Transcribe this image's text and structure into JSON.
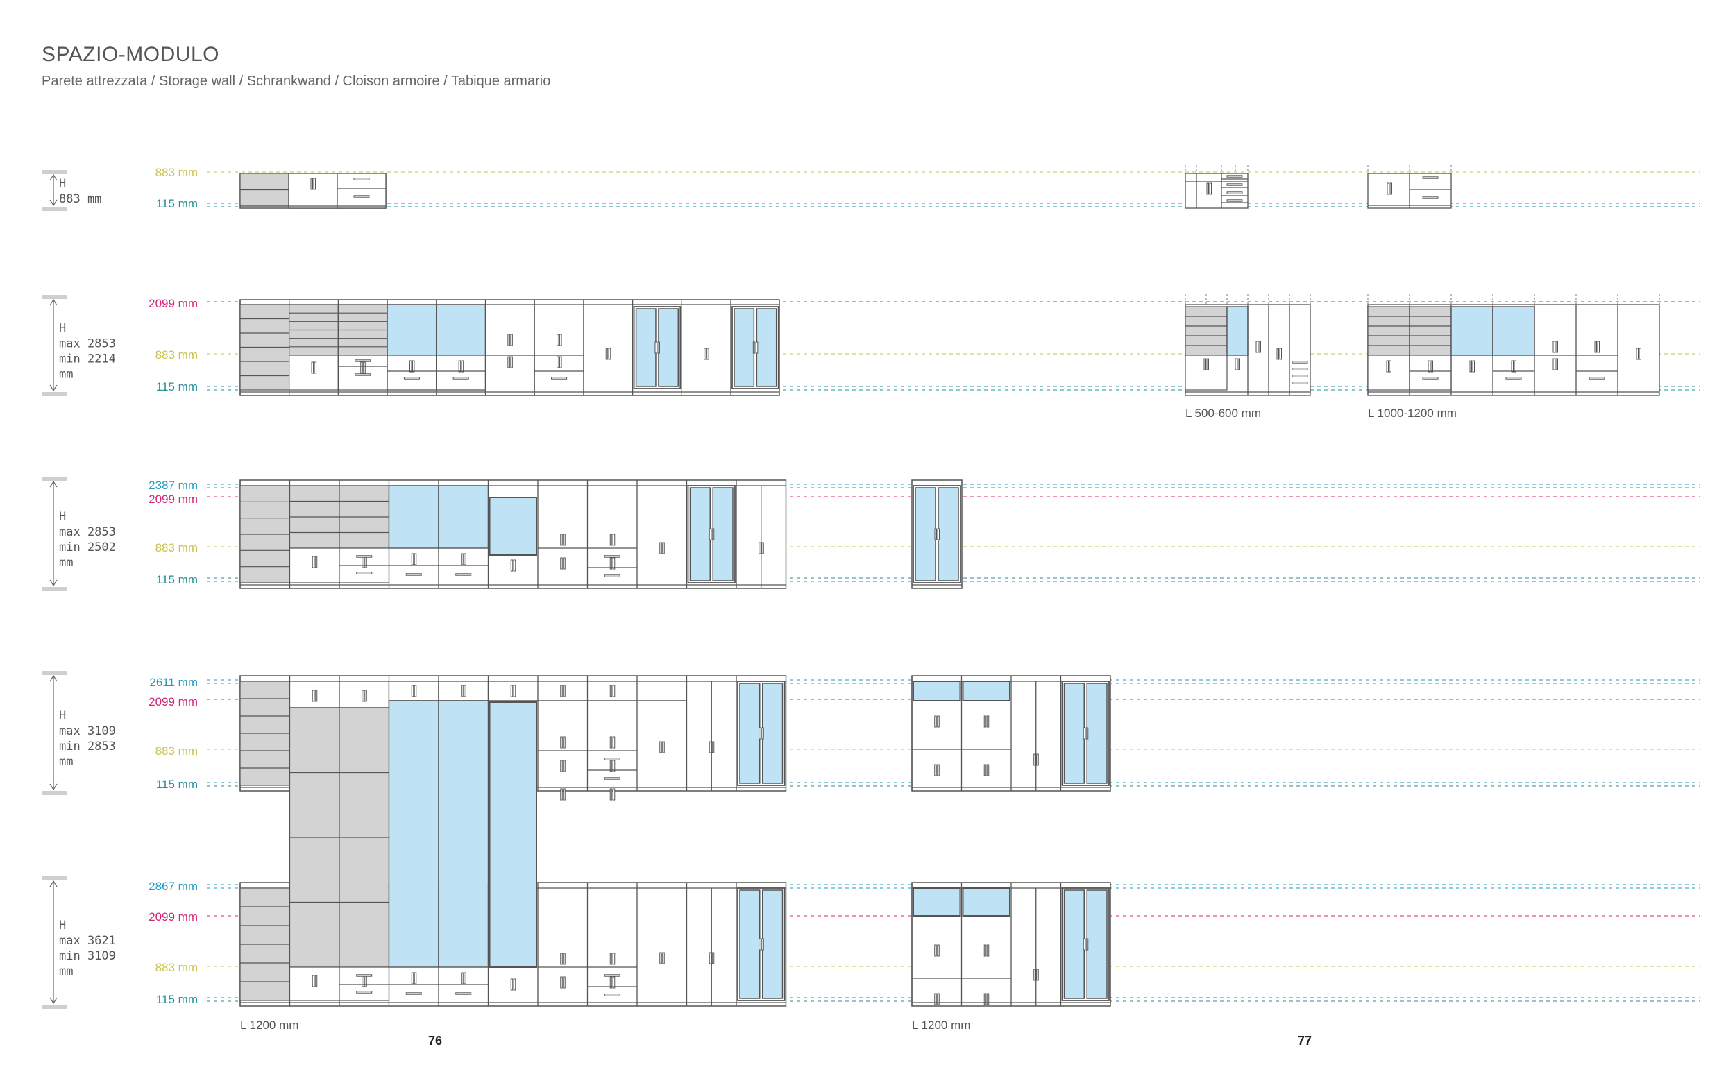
{
  "header": {
    "title": "SPAZIO-MODULO",
    "subtitle": "Parete attrezzata / Storage wall / Schrankwand / Cloison armoire / Tabique armario"
  },
  "colors": {
    "h883": "#c8c24a",
    "h115": "#1f8f98",
    "h2099": "#d6257a",
    "htop": "#1e9bbf",
    "glass": "#bfe3f5",
    "shelf": "#d3d3d3",
    "outline": "#555555"
  },
  "rows": [
    {
      "heights": {
        "label": "H",
        "lines": [
          "883 mm"
        ]
      },
      "levels": [
        {
          "value": "883 mm",
          "color": "h883"
        },
        {
          "value": "115 mm",
          "color": "h115"
        }
      ]
    },
    {
      "heights": {
        "label": "H",
        "lines": [
          "max 2853",
          "min 2214",
          "mm"
        ]
      },
      "levels": [
        {
          "value": "2099 mm",
          "color": "h2099"
        },
        {
          "value": "883 mm",
          "color": "h883"
        },
        {
          "value": "115 mm",
          "color": "h115"
        }
      ]
    },
    {
      "heights": {
        "label": "H",
        "lines": [
          "max 2853",
          "min 2502",
          "mm"
        ]
      },
      "levels": [
        {
          "value": "2387 mm",
          "color": "htop"
        },
        {
          "value": "2099 mm",
          "color": "h2099"
        },
        {
          "value": "883 mm",
          "color": "h883"
        },
        {
          "value": "115 mm",
          "color": "h115"
        }
      ]
    },
    {
      "heights": {
        "label": "H",
        "lines": [
          "max 3109",
          "min 2853",
          "mm"
        ]
      },
      "levels": [
        {
          "value": "2611 mm",
          "color": "htop"
        },
        {
          "value": "2099 mm",
          "color": "h2099"
        },
        {
          "value": "883 mm",
          "color": "h883"
        },
        {
          "value": "115 mm",
          "color": "h115"
        }
      ]
    },
    {
      "heights": {
        "label": "H",
        "lines": [
          "max 3621",
          "min 3109",
          "mm"
        ]
      },
      "levels": [
        {
          "value": "2867 mm",
          "color": "htop"
        },
        {
          "value": "2099 mm",
          "color": "h2099"
        },
        {
          "value": "883 mm",
          "color": "h883"
        },
        {
          "value": "115 mm",
          "color": "h115"
        }
      ]
    }
  ],
  "width_labels": {
    "small_unit": "L 500-600 mm",
    "medium_unit": "L 1000-1200 mm",
    "left_group": "L 1200 mm",
    "middle_group": "L 1200 mm"
  },
  "page_numbers": {
    "left": "76",
    "right": "77"
  }
}
